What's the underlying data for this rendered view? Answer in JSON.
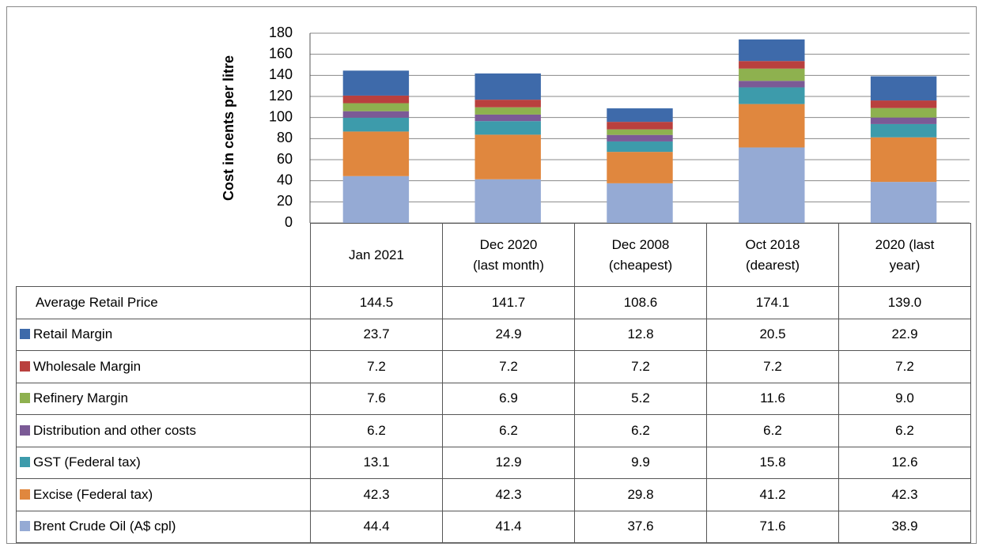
{
  "chart_data": {
    "type": "bar",
    "stacked": true,
    "y_label": "Cost in cents per litre",
    "categories": [
      "Jan 2021",
      "Dec 2020\n(last month)",
      "Dec 2008\n(cheapest)",
      "Oct 2018\n(dearest)",
      "2020 (last\nyear)"
    ],
    "ylim": [
      0,
      180
    ],
    "yticks": [
      0,
      20,
      40,
      60,
      80,
      100,
      120,
      140,
      160,
      180
    ],
    "grid": true,
    "total": {
      "name": "Average Retail Price",
      "values": [
        144.5,
        141.7,
        108.6,
        174.1,
        139.0
      ],
      "value_labels": [
        "144.5",
        "141.7",
        "108.6",
        "174.1",
        "139.0"
      ]
    },
    "series": [
      {
        "name": "Retail Margin",
        "color": "#3e6aaa",
        "values": [
          23.7,
          24.9,
          12.8,
          20.5,
          22.9
        ]
      },
      {
        "name": "Wholesale Margin",
        "color": "#b9403e",
        "values": [
          7.2,
          7.2,
          7.2,
          7.2,
          7.2
        ]
      },
      {
        "name": "Refinery Margin",
        "color": "#8eb14f",
        "values": [
          7.6,
          6.9,
          5.2,
          11.6,
          9.0
        ],
        "value_labels": [
          "7.6",
          "6.9",
          "5.2",
          "11.6",
          "9.0"
        ]
      },
      {
        "name": "Distribution and other costs",
        "color": "#7b5a96",
        "values": [
          6.2,
          6.2,
          6.2,
          6.2,
          6.2
        ]
      },
      {
        "name": "GST (Federal tax)",
        "color": "#3d9bab",
        "values": [
          13.1,
          12.9,
          9.9,
          15.8,
          12.6
        ]
      },
      {
        "name": "Excise (Federal tax)",
        "color": "#e0873e",
        "values": [
          42.3,
          42.3,
          29.8,
          41.2,
          42.3
        ]
      },
      {
        "name": "Brent Crude Oil (A$ cpl)",
        "color": "#95aad4",
        "values": [
          44.4,
          41.4,
          37.6,
          71.6,
          38.9
        ]
      }
    ]
  }
}
